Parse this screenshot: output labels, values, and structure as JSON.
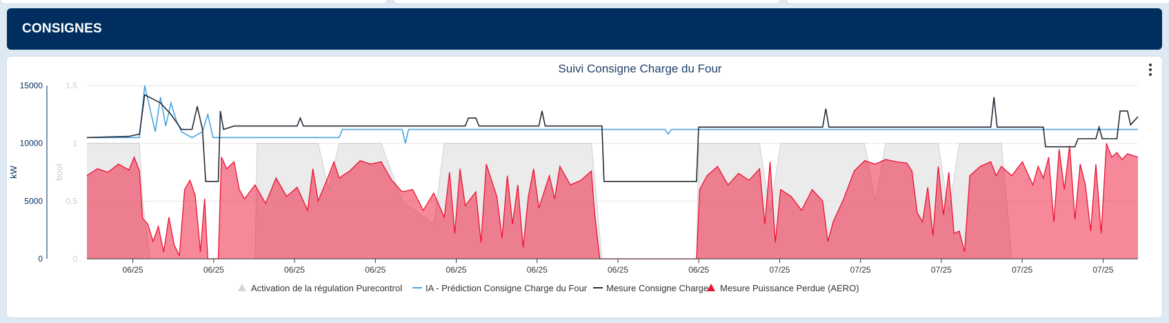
{
  "header": {
    "title": "CONSIGNES"
  },
  "chart_data": {
    "type": "line",
    "title": "Suivi Consigne Charge du Four",
    "y_axes": [
      {
        "label": "kW",
        "range": [
          0,
          15000
        ],
        "ticks": [
          "0",
          "5000",
          "10000",
          "15000"
        ],
        "color": "#002f5f"
      },
      {
        "label": "bool",
        "range": [
          0,
          1.5
        ],
        "ticks": [
          "0",
          "0.5",
          "1",
          "1.5"
        ],
        "color": "#cccccc"
      }
    ],
    "x_ticks": [
      "06/25",
      "06/25",
      "06/25",
      "06/25",
      "06/25",
      "06/25",
      "06/25",
      "06/25",
      "07/25",
      "07/25",
      "07/25",
      "07/25",
      "07/25"
    ],
    "x_range": [
      0,
      100
    ],
    "grid": true,
    "legend_position": "bottom",
    "series": [
      {
        "name": "Activation de la régulation Purecontrol",
        "type": "area",
        "axis": "bool",
        "color": "#e4e4e4",
        "points": [
          [
            0,
            1
          ],
          [
            5,
            1
          ],
          [
            5.3,
            0.5
          ],
          [
            6,
            0
          ],
          [
            16,
            0
          ],
          [
            16.2,
            1
          ],
          [
            22,
            1
          ],
          [
            23,
            0.6
          ],
          [
            24,
            1
          ],
          [
            28,
            1
          ],
          [
            30,
            0.5
          ],
          [
            33,
            0.3
          ],
          [
            34,
            1
          ],
          [
            48,
            1
          ],
          [
            49,
            0
          ],
          [
            58,
            0
          ],
          [
            58.2,
            1
          ],
          [
            64,
            1
          ],
          [
            65,
            0.4
          ],
          [
            66,
            1
          ],
          [
            74,
            1
          ],
          [
            75,
            0.5
          ],
          [
            76,
            1
          ],
          [
            81,
            1
          ],
          [
            82,
            0.4
          ],
          [
            83,
            1
          ],
          [
            87,
            1
          ],
          [
            88,
            0
          ],
          [
            100,
            0
          ]
        ]
      },
      {
        "name": "IA - Prédiction Consigne Charge du Four",
        "type": "line",
        "axis": "kW",
        "color": "#4aa3df",
        "points": [
          [
            0,
            10500
          ],
          [
            5,
            10500
          ],
          [
            5.5,
            15000
          ],
          [
            6,
            13000
          ],
          [
            6.5,
            11000
          ],
          [
            7,
            14000
          ],
          [
            7.5,
            11500
          ],
          [
            8,
            13500
          ],
          [
            8.5,
            12000
          ],
          [
            9,
            11000
          ],
          [
            10,
            10500
          ],
          [
            11,
            11000
          ],
          [
            11.5,
            12500
          ],
          [
            12,
            10500
          ],
          [
            17,
            10500
          ],
          [
            23,
            10500
          ],
          [
            24,
            10500
          ],
          [
            24.3,
            11200
          ],
          [
            30,
            11200
          ],
          [
            30.3,
            10000
          ],
          [
            30.6,
            11200
          ],
          [
            48,
            11200
          ],
          [
            51,
            11200
          ],
          [
            55,
            11200
          ],
          [
            55.3,
            10800
          ],
          [
            55.6,
            11200
          ],
          [
            58,
            11200
          ],
          [
            70,
            11200
          ],
          [
            74,
            11200
          ],
          [
            84,
            11200
          ],
          [
            87,
            11200
          ],
          [
            90,
            11200
          ],
          [
            96,
            11200
          ],
          [
            100,
            11200
          ]
        ]
      },
      {
        "name": "Mesure Consigne Charge",
        "type": "line",
        "axis": "kW",
        "color": "#222a35",
        "points": [
          [
            0,
            10500
          ],
          [
            4,
            10600
          ],
          [
            5,
            10800
          ],
          [
            5.5,
            14200
          ],
          [
            7,
            13500
          ],
          [
            8,
            12500
          ],
          [
            9,
            11200
          ],
          [
            10,
            11200
          ],
          [
            10.5,
            13200
          ],
          [
            11,
            11200
          ],
          [
            11.3,
            6700
          ],
          [
            12.5,
            6700
          ],
          [
            12.7,
            12800
          ],
          [
            13,
            11200
          ],
          [
            14,
            11500
          ],
          [
            20,
            11500
          ],
          [
            20.3,
            12200
          ],
          [
            20.6,
            11500
          ],
          [
            36,
            11500
          ],
          [
            36.3,
            12200
          ],
          [
            37,
            12200
          ],
          [
            37.3,
            11500
          ],
          [
            43,
            11500
          ],
          [
            43.3,
            12800
          ],
          [
            43.6,
            11500
          ],
          [
            49,
            11500
          ],
          [
            49.2,
            6700
          ],
          [
            58,
            6700
          ],
          [
            58.2,
            11400
          ],
          [
            70,
            11400
          ],
          [
            70.3,
            13000
          ],
          [
            70.6,
            11400
          ],
          [
            86,
            11400
          ],
          [
            86.3,
            14000
          ],
          [
            86.6,
            11400
          ],
          [
            91,
            11400
          ],
          [
            91.2,
            9700
          ],
          [
            94,
            9700
          ],
          [
            94.3,
            10400
          ],
          [
            96,
            10400
          ],
          [
            96.3,
            11400
          ],
          [
            96.6,
            10400
          ],
          [
            98,
            10400
          ],
          [
            98.3,
            12800
          ],
          [
            99,
            12800
          ],
          [
            99.3,
            11600
          ],
          [
            100,
            12300
          ]
        ]
      },
      {
        "name": "Mesure Puissance Perdue (AERO)",
        "type": "area",
        "axis": "kW",
        "color": "#ee1133",
        "points": [
          [
            0,
            7200
          ],
          [
            1,
            7800
          ],
          [
            2,
            7500
          ],
          [
            3,
            8200
          ],
          [
            4,
            7700
          ],
          [
            4.5,
            8800
          ],
          [
            5,
            7600
          ],
          [
            5.3,
            3500
          ],
          [
            5.8,
            3000
          ],
          [
            6.3,
            1500
          ],
          [
            6.8,
            2800
          ],
          [
            7.3,
            600
          ],
          [
            7.8,
            3600
          ],
          [
            8.3,
            1200
          ],
          [
            8.8,
            300
          ],
          [
            9.3,
            6000
          ],
          [
            9.8,
            6800
          ],
          [
            10.3,
            5500
          ],
          [
            10.8,
            600
          ],
          [
            11.2,
            5200
          ],
          [
            11.5,
            0
          ],
          [
            12.5,
            0
          ],
          [
            12.8,
            8800
          ],
          [
            13.3,
            7800
          ],
          [
            14,
            8400
          ],
          [
            14.5,
            6000
          ],
          [
            15,
            5200
          ],
          [
            16,
            6400
          ],
          [
            17,
            4800
          ],
          [
            18,
            7000
          ],
          [
            19,
            5400
          ],
          [
            20,
            6200
          ],
          [
            21,
            4200
          ],
          [
            21.5,
            7800
          ],
          [
            22,
            5000
          ],
          [
            23,
            7200
          ],
          [
            23.5,
            8400
          ],
          [
            24,
            7000
          ],
          [
            25,
            7600
          ],
          [
            26,
            8500
          ],
          [
            27,
            8200
          ],
          [
            28,
            8400
          ],
          [
            29,
            6800
          ],
          [
            30,
            5800
          ],
          [
            31,
            6000
          ],
          [
            32,
            4200
          ],
          [
            33,
            5700
          ],
          [
            34,
            3600
          ],
          [
            34.5,
            7500
          ],
          [
            35,
            2200
          ],
          [
            35.5,
            7800
          ],
          [
            36,
            4600
          ],
          [
            37,
            5800
          ],
          [
            37.5,
            1400
          ],
          [
            38,
            8200
          ],
          [
            39,
            5400
          ],
          [
            39.5,
            1800
          ],
          [
            40,
            7200
          ],
          [
            40.5,
            3000
          ],
          [
            41,
            6400
          ],
          [
            41.5,
            1000
          ],
          [
            42,
            5400
          ],
          [
            42.5,
            7800
          ],
          [
            43,
            4400
          ],
          [
            44,
            7200
          ],
          [
            44.5,
            5200
          ],
          [
            45,
            8000
          ],
          [
            46,
            6400
          ],
          [
            47,
            6800
          ],
          [
            48,
            7600
          ],
          [
            48.3,
            4000
          ],
          [
            48.8,
            0
          ],
          [
            58,
            0
          ],
          [
            58.3,
            6000
          ],
          [
            59,
            7200
          ],
          [
            60,
            8000
          ],
          [
            61,
            6400
          ],
          [
            62,
            7400
          ],
          [
            63,
            6800
          ],
          [
            64,
            7800
          ],
          [
            64.5,
            3000
          ],
          [
            65,
            8400
          ],
          [
            65.5,
            1400
          ],
          [
            66,
            6000
          ],
          [
            67,
            5400
          ],
          [
            68,
            4200
          ],
          [
            69,
            6000
          ],
          [
            70,
            5000
          ],
          [
            70.5,
            1500
          ],
          [
            71,
            3200
          ],
          [
            72,
            5200
          ],
          [
            73,
            7600
          ],
          [
            74,
            8500
          ],
          [
            75,
            8200
          ],
          [
            76,
            8600
          ],
          [
            77,
            8400
          ],
          [
            78,
            8300
          ],
          [
            78.5,
            7600
          ],
          [
            79,
            4000
          ],
          [
            79.5,
            3200
          ],
          [
            80,
            6200
          ],
          [
            80.5,
            2000
          ],
          [
            81,
            8000
          ],
          [
            81.5,
            3800
          ],
          [
            82,
            7500
          ],
          [
            82.5,
            2200
          ],
          [
            83,
            2400
          ],
          [
            83.5,
            600
          ],
          [
            84,
            7200
          ],
          [
            85,
            8000
          ],
          [
            86,
            8400
          ],
          [
            86.5,
            7200
          ],
          [
            87,
            8000
          ],
          [
            88,
            7200
          ],
          [
            89,
            8400
          ],
          [
            90,
            6400
          ],
          [
            90.5,
            8000
          ],
          [
            91,
            7000
          ],
          [
            91.5,
            8800
          ],
          [
            92,
            3200
          ],
          [
            92.5,
            9500
          ],
          [
            93,
            6000
          ],
          [
            93.5,
            9800
          ],
          [
            94,
            3400
          ],
          [
            94.5,
            8200
          ],
          [
            95,
            6400
          ],
          [
            95.5,
            2400
          ],
          [
            96,
            8200
          ],
          [
            96.5,
            2200
          ],
          [
            97,
            10000
          ],
          [
            97.5,
            8800
          ],
          [
            98,
            9200
          ],
          [
            98.5,
            8600
          ],
          [
            99,
            9100
          ],
          [
            100,
            8800
          ]
        ]
      }
    ]
  }
}
